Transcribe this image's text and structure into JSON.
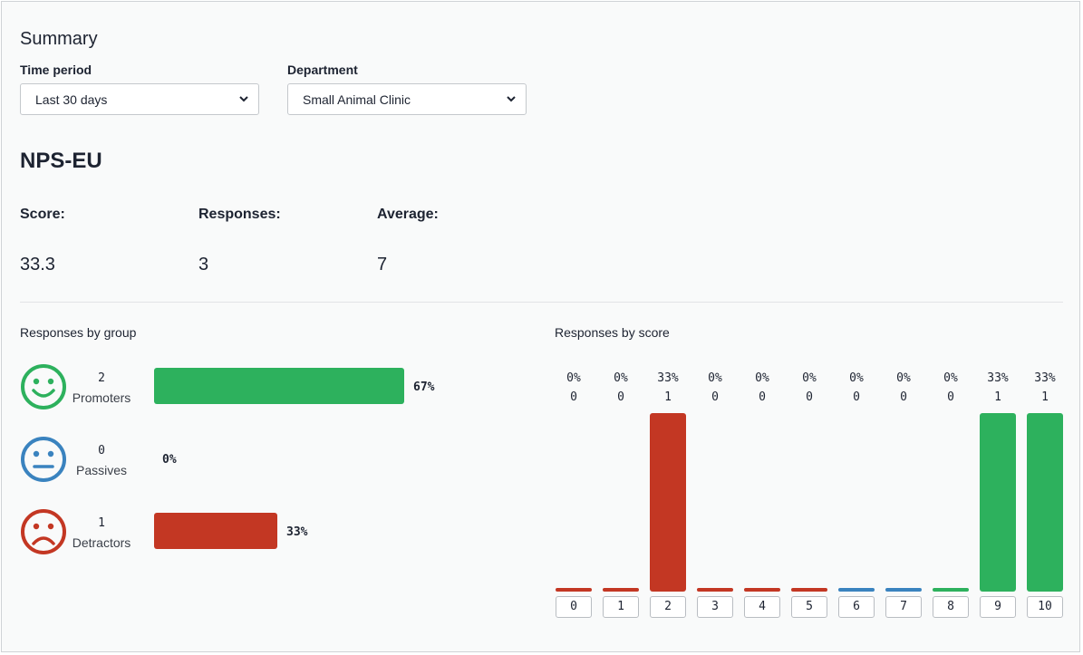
{
  "summary": {
    "title": "Summary",
    "time_period": {
      "label": "Time period",
      "value": "Last 30 days"
    },
    "department": {
      "label": "Department",
      "value": "Small Animal Clinic"
    }
  },
  "nps": {
    "title": "NPS-EU",
    "score": {
      "label": "Score:",
      "value": "33.3"
    },
    "responses": {
      "label": "Responses:",
      "value": "3"
    },
    "average": {
      "label": "Average:",
      "value": "7"
    }
  },
  "groups": {
    "title": "Responses by group",
    "items": [
      {
        "name": "Promoters",
        "count": "2",
        "percent": "67%",
        "share": 0.67,
        "color": "#2db15d",
        "icon": "smile-face-icon"
      },
      {
        "name": "Passives",
        "count": "0",
        "percent": "0%",
        "share": 0,
        "color": "#3a83bf",
        "icon": "neutral-face-icon"
      },
      {
        "name": "Detractors",
        "count": "1",
        "percent": "33%",
        "share": 0.33,
        "color": "#c33723",
        "icon": "sad-face-icon"
      }
    ]
  },
  "chart_data": {
    "type": "bar",
    "title": "Responses by score",
    "categories": [
      "0",
      "1",
      "2",
      "3",
      "4",
      "5",
      "6",
      "7",
      "8",
      "9",
      "10"
    ],
    "values": [
      0,
      0,
      1,
      0,
      0,
      0,
      0,
      0,
      0,
      1,
      1
    ],
    "percent_labels": [
      "0%",
      "0%",
      "33%",
      "0%",
      "0%",
      "0%",
      "0%",
      "0%",
      "0%",
      "33%",
      "33%"
    ],
    "count_labels": [
      "0",
      "0",
      "1",
      "0",
      "0",
      "0",
      "0",
      "0",
      "0",
      "1",
      "1"
    ],
    "colors": [
      "#c33723",
      "#c33723",
      "#c33723",
      "#c33723",
      "#c33723",
      "#c33723",
      "#3a83bf",
      "#3a83bf",
      "#2db15d",
      "#2db15d",
      "#2db15d"
    ],
    "ylim": [
      0,
      1
    ],
    "grid": false
  },
  "icons": {
    "dropdown": "chevron-down-icon"
  }
}
